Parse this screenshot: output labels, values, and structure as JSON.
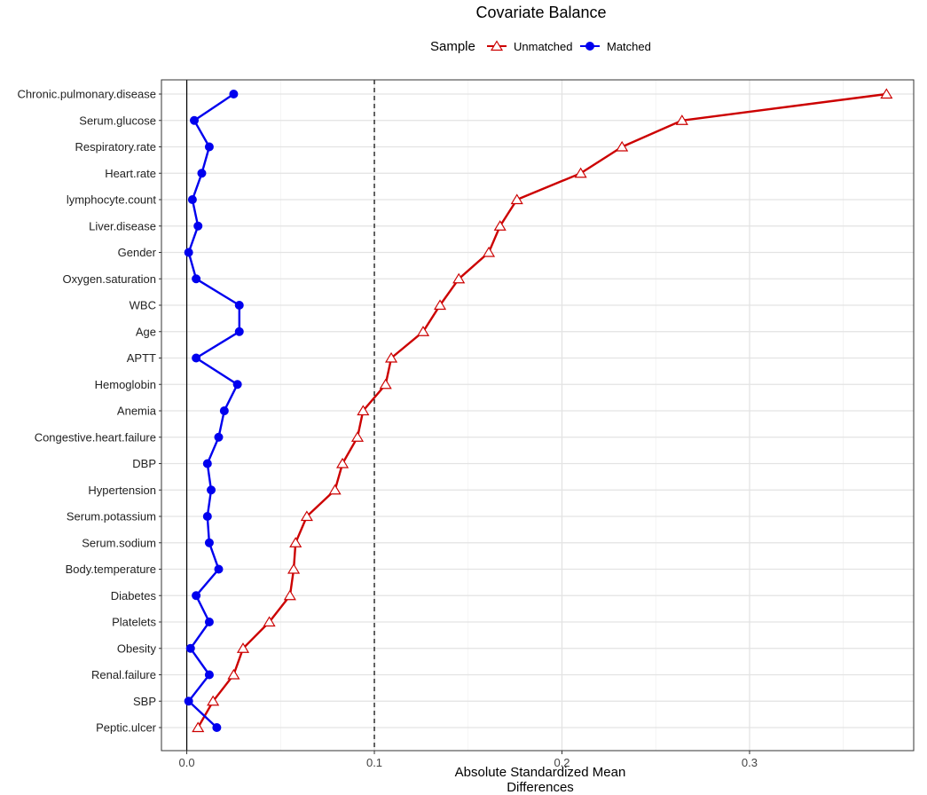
{
  "chart_data": {
    "type": "line",
    "title": "Covariate Balance",
    "legend": {
      "title": "Sample",
      "position": "top",
      "entries": [
        {
          "name": "Unmatched",
          "color": "#cc0000",
          "marker": "triangle-open"
        },
        {
          "name": "Matched",
          "color": "#0000ee",
          "marker": "circle-filled"
        }
      ]
    },
    "xlabel": [
      "Absolute Standardized Mean",
      "Differences"
    ],
    "ylabel": "",
    "xlim": [
      -0.0135,
      0.3875
    ],
    "xticks": [
      0.0,
      0.1,
      0.2,
      0.3
    ],
    "xtick_labels": [
      "0.0",
      "0.1",
      "0.2",
      "0.3"
    ],
    "reference_lines": [
      {
        "x": 0,
        "style": "solid"
      },
      {
        "x": 0.1,
        "style": "dashed"
      }
    ],
    "grid": true,
    "categories": [
      "Chronic.pulmonary.disease",
      "Serum.glucose",
      "Respiratory.rate",
      "Heart.rate",
      "lymphocyte.count",
      "Liver.disease",
      "Gender",
      "Oxygen.saturation",
      "WBC",
      "Age",
      "APTT",
      "Hemoglobin",
      "Anemia",
      "Congestive.heart.failure",
      "DBP",
      "Hypertension",
      "Serum.potassium",
      "Serum.sodium",
      "Body.temperature",
      "Diabetes",
      "Platelets",
      "Obesity",
      "Renal.failure",
      "SBP",
      "Peptic.ulcer"
    ],
    "series": [
      {
        "name": "Unmatched",
        "values": [
          0.373,
          0.264,
          0.232,
          0.21,
          0.176,
          0.167,
          0.161,
          0.145,
          0.135,
          0.126,
          0.109,
          0.106,
          0.094,
          0.091,
          0.083,
          0.079,
          0.064,
          0.058,
          0.057,
          0.055,
          0.044,
          0.03,
          0.025,
          0.014,
          0.006
        ]
      },
      {
        "name": "Matched",
        "values": [
          0.025,
          0.004,
          0.012,
          0.008,
          0.003,
          0.006,
          0.001,
          0.005,
          0.028,
          0.028,
          0.005,
          0.027,
          0.02,
          0.017,
          0.011,
          0.013,
          0.011,
          0.012,
          0.017,
          0.005,
          0.012,
          0.002,
          0.012,
          0.001,
          0.016
        ]
      }
    ]
  }
}
